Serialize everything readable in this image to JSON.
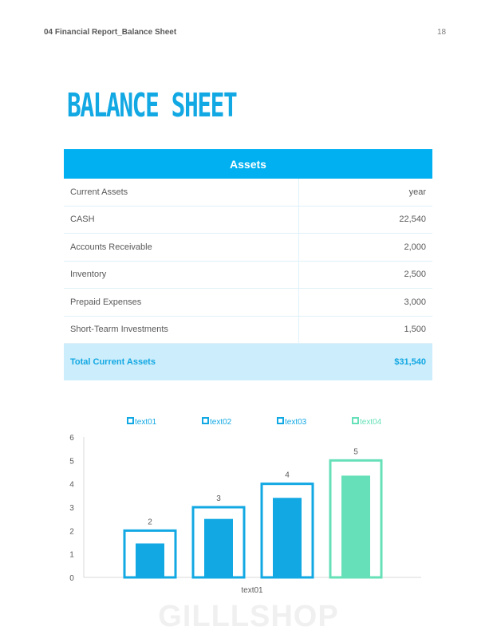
{
  "header": {
    "title": "04 Financial  Report_Balance  Sheet",
    "page_number": "18"
  },
  "page_title": "Balance Sheet",
  "table": {
    "title": "Assets",
    "header_row": {
      "label": "Current Assets",
      "value": "year"
    },
    "rows": [
      {
        "label": "CASH",
        "value": "22,540"
      },
      {
        "label": "Accounts Receivable",
        "value": "2,000"
      },
      {
        "label": "Inventory",
        "value": "2,500"
      },
      {
        "label": "Prepaid Expenses",
        "value": "3,000"
      },
      {
        "label": "Short-Tearm Investments",
        "value": "1,500"
      }
    ],
    "total": {
      "label": "Total Current Assets",
      "value": "$31,540"
    }
  },
  "chart_data": {
    "type": "bar",
    "categories": [
      "text01"
    ],
    "series": [
      {
        "name": "text01",
        "outline": 2,
        "value": 1.45,
        "label": "2",
        "color": "#12a8e3"
      },
      {
        "name": "text02",
        "outline": 3,
        "value": 2.5,
        "label": "3",
        "color": "#12a8e3"
      },
      {
        "name": "text03",
        "outline": 4,
        "value": 3.4,
        "label": "4",
        "color": "#12a8e3"
      },
      {
        "name": "text04",
        "outline": 5,
        "value": 4.35,
        "label": "5",
        "color": "#66e0b8"
      }
    ],
    "ylim": [
      0,
      6
    ],
    "yticks": [
      "0",
      "1",
      "2",
      "3",
      "4",
      "5",
      "6"
    ],
    "legend_position": "top"
  },
  "watermark": "GILLLSHOP"
}
